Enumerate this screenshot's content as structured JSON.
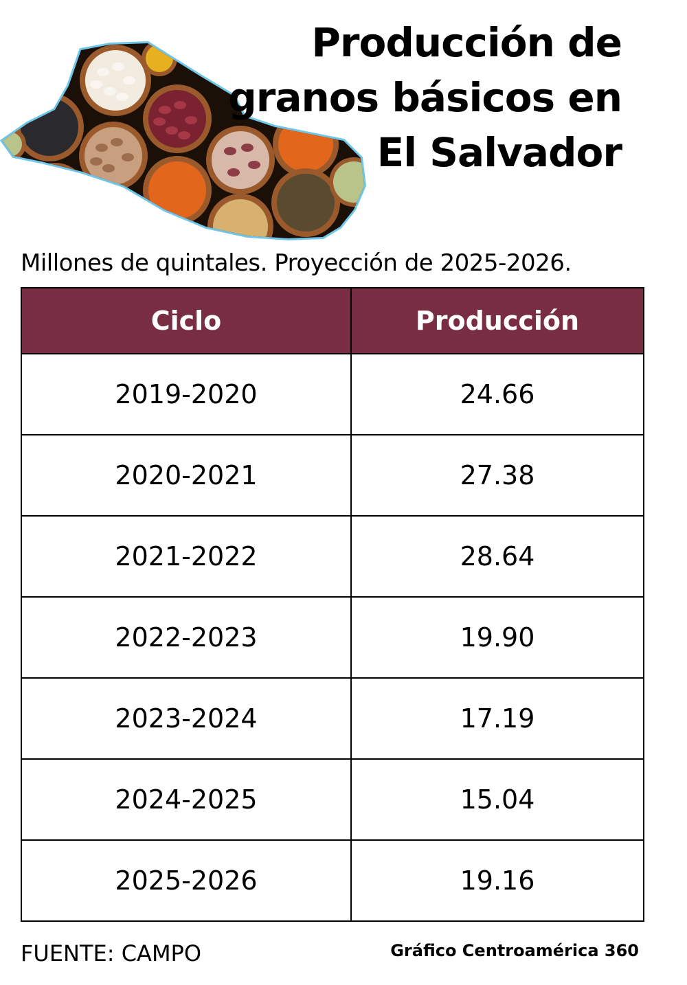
{
  "header": {
    "title_lines": [
      "Producción de",
      "granos básicos en",
      "El Salvador"
    ],
    "subtitle": "Millones de quintales. Proyección de 2025-2026."
  },
  "illustration": {
    "name": "el-salvador-map-beans",
    "colors": {
      "outline": "#6fc6e8",
      "background": "#1b1008",
      "bowl": "#9a5a2c",
      "white_bean": "#f2ece0",
      "red_bean": "#7a2230",
      "orange_lentil": "#e2661c",
      "black_lentil": "#2a2a2e",
      "yellow_pea": "#e6b020",
      "pinto_bean": "#c8a080",
      "green_pea": "#b8c48a",
      "brown_lentil": "#5a4a30"
    }
  },
  "table": {
    "header_bg": "#792d42",
    "columns": [
      "Ciclo",
      "Producción"
    ]
  },
  "chart_data": {
    "type": "table",
    "title": "Producción de granos básicos en El Salvador",
    "subtitle": "Millones de quintales. Proyección de 2025-2026.",
    "columns": [
      "Ciclo",
      "Producción"
    ],
    "categories": [
      "2019-2020",
      "2020-2021",
      "2021-2022",
      "2022-2023",
      "2023-2024",
      "2024-2025",
      "2025-2026"
    ],
    "values": [
      "24.66",
      "27.38",
      "28.64",
      "19.90",
      "17.19",
      "15.04",
      "19.16"
    ]
  },
  "footer": {
    "source": "FUENTE: CAMPO",
    "credit": "Gráfico Centroamérica 360"
  }
}
